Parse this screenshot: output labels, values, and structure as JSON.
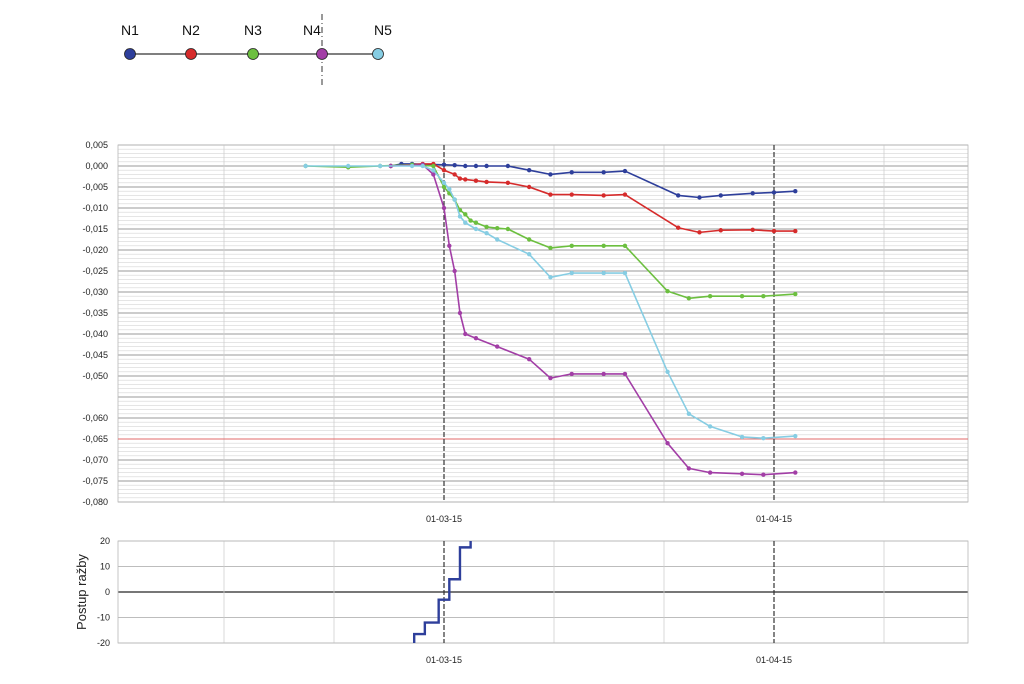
{
  "legend": {
    "nodes": [
      {
        "label": "N1",
        "color": "#2e3f9b"
      },
      {
        "label": "N2",
        "color": "#d62b2b"
      },
      {
        "label": "N3",
        "color": "#6cbf3f"
      },
      {
        "label": "N4",
        "color": "#a23ea6"
      },
      {
        "label": "N5",
        "color": "#86cde3"
      }
    ]
  },
  "chart_data": [
    {
      "type": "line",
      "ylim": [
        -0.08,
        0.005
      ],
      "yticks": [
        0.005,
        0.0,
        -0.005,
        -0.01,
        -0.015,
        -0.02,
        -0.025,
        -0.03,
        -0.035,
        -0.04,
        -0.045,
        -0.05,
        -0.06,
        -0.065,
        -0.07,
        -0.075,
        -0.08
      ],
      "ytick_labels": [
        "0,005",
        "0,000",
        "-0,005",
        "-0,010",
        "-0,015",
        "-0,020",
        "-0,025",
        "-0,030",
        "-0,035",
        "-0,040",
        "-0,045",
        "-0,050",
        "-0,060",
        "-0,065",
        "-0,070",
        "-0,075",
        "-0,080"
      ],
      "x_tick_labels": [
        {
          "label": "01-03-15",
          "day": 0
        },
        {
          "label": "01-04-15",
          "day": 31
        }
      ],
      "xlim_days": [
        -31,
        48
      ],
      "reference_line_y": -0.065,
      "series": [
        {
          "name": "N1",
          "color": "#2e3f9b",
          "points": [
            [
              -5,
              0.0
            ],
            [
              -4,
              0.0005
            ],
            [
              -3,
              0.0005
            ],
            [
              0,
              0.0003
            ],
            [
              1,
              0.0002
            ],
            [
              2,
              0.0
            ],
            [
              3,
              0.0
            ],
            [
              4,
              0.0
            ],
            [
              6,
              0.0
            ],
            [
              8,
              -0.001
            ],
            [
              10,
              -0.002
            ],
            [
              12,
              -0.0015
            ],
            [
              15,
              -0.0015
            ],
            [
              17,
              -0.0012
            ],
            [
              22,
              -0.007
            ],
            [
              24,
              -0.0075
            ],
            [
              26,
              -0.007
            ],
            [
              29,
              -0.0065
            ],
            [
              31,
              -0.0063
            ],
            [
              33,
              -0.006
            ]
          ]
        },
        {
          "name": "N2",
          "color": "#d62b2b",
          "points": [
            [
              -5,
              0.0
            ],
            [
              -2,
              0.0005
            ],
            [
              -1,
              0.0005
            ],
            [
              0,
              -0.001
            ],
            [
              1,
              -0.002
            ],
            [
              1.5,
              -0.003
            ],
            [
              2,
              -0.0032
            ],
            [
              3,
              -0.0035
            ],
            [
              4,
              -0.0038
            ],
            [
              6,
              -0.004
            ],
            [
              8,
              -0.005
            ],
            [
              10,
              -0.0068
            ],
            [
              12,
              -0.0068
            ],
            [
              15,
              -0.007
            ],
            [
              17,
              -0.0068
            ],
            [
              22,
              -0.0147
            ],
            [
              24,
              -0.0158
            ],
            [
              26,
              -0.0153
            ],
            [
              29,
              -0.0152
            ],
            [
              31,
              -0.0155
            ],
            [
              33,
              -0.0155
            ]
          ]
        },
        {
          "name": "N3",
          "color": "#6cbf3f",
          "points": [
            [
              -13,
              0.0
            ],
            [
              -9,
              -0.0003
            ],
            [
              -6,
              0.0
            ],
            [
              -3,
              0.0003
            ],
            [
              -1,
              0.0
            ],
            [
              0,
              -0.005
            ],
            [
              0.5,
              -0.0065
            ],
            [
              1,
              -0.008
            ],
            [
              1.5,
              -0.0105
            ],
            [
              2,
              -0.0115
            ],
            [
              2.5,
              -0.013
            ],
            [
              3,
              -0.0135
            ],
            [
              4,
              -0.0145
            ],
            [
              5,
              -0.0148
            ],
            [
              6,
              -0.015
            ],
            [
              8,
              -0.0175
            ],
            [
              10,
              -0.0195
            ],
            [
              12,
              -0.019
            ],
            [
              15,
              -0.019
            ],
            [
              17,
              -0.019
            ],
            [
              21,
              -0.0298
            ],
            [
              23,
              -0.0315
            ],
            [
              25,
              -0.031
            ],
            [
              28,
              -0.031
            ],
            [
              30,
              -0.031
            ],
            [
              33,
              -0.0305
            ]
          ]
        },
        {
          "name": "N4",
          "color": "#a23ea6",
          "points": [
            [
              -5,
              0.0
            ],
            [
              -2,
              0.0003
            ],
            [
              -1,
              -0.002
            ],
            [
              0,
              -0.01
            ],
            [
              0.5,
              -0.019
            ],
            [
              1,
              -0.025
            ],
            [
              1.5,
              -0.035
            ],
            [
              2,
              -0.04
            ],
            [
              3,
              -0.041
            ],
            [
              5,
              -0.043
            ],
            [
              8,
              -0.046
            ],
            [
              10,
              -0.0505
            ],
            [
              12,
              -0.0495
            ],
            [
              15,
              -0.0495
            ],
            [
              17,
              -0.0495
            ],
            [
              21,
              -0.066
            ],
            [
              23,
              -0.072
            ],
            [
              25,
              -0.073
            ],
            [
              28,
              -0.0733
            ],
            [
              30,
              -0.0735
            ],
            [
              33,
              -0.073
            ]
          ]
        },
        {
          "name": "N5",
          "color": "#86cde3",
          "points": [
            [
              -13,
              0.0
            ],
            [
              -9,
              0.0
            ],
            [
              -6,
              0.0
            ],
            [
              -3,
              0.0
            ],
            [
              -2,
              0.0
            ],
            [
              -1,
              -0.001
            ],
            [
              0,
              -0.004
            ],
            [
              0.5,
              -0.0055
            ],
            [
              1,
              -0.008
            ],
            [
              1.5,
              -0.012
            ],
            [
              2,
              -0.0135
            ],
            [
              3,
              -0.015
            ],
            [
              4,
              -0.016
            ],
            [
              5,
              -0.0175
            ],
            [
              8,
              -0.021
            ],
            [
              10,
              -0.0265
            ],
            [
              12,
              -0.0255
            ],
            [
              15,
              -0.0255
            ],
            [
              17,
              -0.0255
            ],
            [
              21,
              -0.049
            ],
            [
              23,
              -0.059
            ],
            [
              25,
              -0.062
            ],
            [
              28,
              -0.0645
            ],
            [
              30,
              -0.0648
            ],
            [
              33,
              -0.0643
            ]
          ]
        }
      ]
    },
    {
      "type": "line",
      "ylabel": "Postup ražby",
      "ylim": [
        -20,
        20
      ],
      "yticks": [
        20,
        10,
        0,
        -10,
        -20
      ],
      "ytick_labels": [
        "20",
        "10",
        "0",
        "-10",
        "-20"
      ],
      "x_tick_labels": [
        {
          "label": "01-03-15",
          "day": 0
        },
        {
          "label": "01-04-15",
          "day": 31
        }
      ],
      "xlim_days": [
        -31,
        48
      ],
      "series": [
        {
          "color": "#2e3f9b",
          "step_points": [
            [
              -2.8,
              -20
            ],
            [
              -2.8,
              -16.5
            ],
            [
              -1.8,
              -16.5
            ],
            [
              -1.8,
              -12
            ],
            [
              -0.5,
              -12
            ],
            [
              -0.5,
              -3
            ],
            [
              0.5,
              -3
            ],
            [
              0.5,
              5
            ],
            [
              1.5,
              5
            ],
            [
              1.5,
              17.5
            ],
            [
              2.5,
              17.5
            ],
            [
              2.5,
              20
            ]
          ]
        }
      ]
    }
  ]
}
